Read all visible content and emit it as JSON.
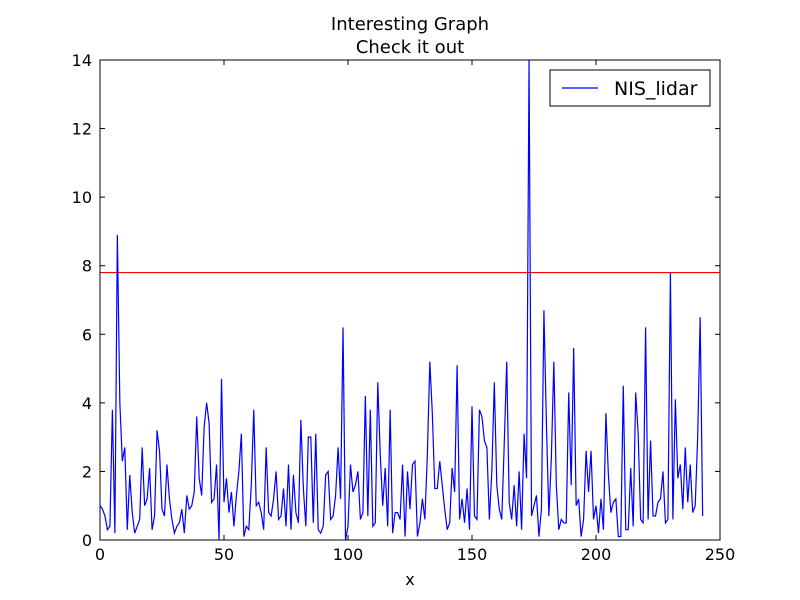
{
  "chart_data": {
    "type": "line",
    "title": "Interesting Graph",
    "subtitle": "Check it out",
    "xlabel": "x",
    "ylabel": "",
    "xlim": [
      0,
      250
    ],
    "ylim": [
      0,
      14
    ],
    "xticks": [
      0,
      50,
      100,
      150,
      200,
      250
    ],
    "yticks": [
      0,
      2,
      4,
      6,
      8,
      10,
      12,
      14
    ],
    "grid": false,
    "legend_position": "top-right",
    "series": [
      {
        "name": "NIS_lidar",
        "color": "#0000ff",
        "x_start": 0,
        "x_step": 1,
        "values": [
          1.0,
          0.9,
          0.7,
          0.3,
          0.4,
          3.8,
          0.2,
          8.9,
          4.0,
          2.3,
          2.7,
          0.3,
          1.9,
          0.8,
          0.2,
          0.4,
          0.6,
          2.7,
          1.0,
          1.2,
          2.1,
          0.3,
          0.7,
          3.2,
          2.6,
          0.9,
          0.7,
          2.2,
          1.2,
          0.6,
          0.2,
          0.4,
          0.5,
          0.9,
          0.2,
          1.3,
          0.9,
          1.0,
          1.4,
          3.6,
          1.8,
          1.3,
          3.3,
          4.0,
          3.4,
          1.1,
          1.2,
          2.2,
          0.0,
          4.7,
          1.1,
          1.8,
          0.8,
          1.4,
          0.4,
          1.3,
          2.0,
          3.1,
          0.1,
          0.4,
          0.3,
          1.6,
          3.8,
          1.0,
          1.1,
          0.8,
          0.3,
          2.7,
          0.8,
          0.7,
          1.2,
          2.0,
          0.6,
          0.7,
          1.5,
          0.4,
          2.2,
          0.3,
          1.9,
          0.8,
          0.5,
          3.5,
          1.5,
          0.4,
          3.0,
          3.0,
          0.5,
          3.1,
          0.3,
          0.2,
          0.4,
          1.9,
          2.0,
          0.6,
          0.7,
          1.3,
          2.7,
          1.2,
          6.2,
          0.0,
          0.4,
          2.2,
          1.4,
          1.6,
          2.0,
          0.6,
          0.8,
          4.2,
          0.7,
          3.8,
          0.4,
          0.5,
          4.6,
          2.5,
          1.0,
          2.1,
          0.4,
          3.8,
          0.2,
          0.8,
          0.8,
          0.6,
          2.2,
          0.1,
          2.0,
          0.9,
          2.2,
          2.3,
          0.1,
          0.5,
          1.2,
          0.6,
          2.5,
          5.2,
          3.7,
          1.5,
          1.5,
          2.3,
          1.6,
          0.9,
          0.3,
          0.5,
          2.1,
          1.4,
          5.1,
          0.6,
          1.2,
          0.5,
          1.5,
          0.3,
          3.9,
          0.7,
          0.6,
          3.8,
          3.6,
          2.9,
          2.7,
          0.6,
          2.0,
          4.6,
          1.6,
          0.9,
          0.6,
          2.8,
          5.2,
          1.1,
          0.6,
          1.6,
          0.4,
          2.0,
          0.3,
          3.1,
          1.8,
          14.0,
          0.7,
          1.0,
          1.3,
          0.1,
          0.9,
          6.7,
          3.4,
          0.7,
          2.4,
          5.2,
          1.6,
          0.3,
          0.6,
          0.5,
          0.5,
          4.3,
          1.6,
          5.6,
          1.0,
          1.2,
          0.1,
          0.6,
          2.6,
          1.4,
          2.6,
          0.6,
          1.0,
          0.2,
          1.2,
          0.3,
          3.7,
          1.9,
          0.8,
          1.1,
          1.2,
          0.1,
          0.1,
          4.5,
          0.3,
          0.3,
          2.1,
          0.4,
          4.3,
          3.1,
          0.6,
          0.5,
          6.2,
          0.6,
          2.9,
          0.7,
          0.7,
          1.1,
          1.2,
          2.0,
          0.5,
          0.6,
          7.8,
          0.6,
          4.1,
          1.8,
          2.2,
          0.9,
          2.7,
          1.1,
          2.2,
          0.8,
          1.0,
          3.0,
          6.5,
          0.7
        ]
      }
    ],
    "reference_lines": [
      {
        "orientation": "horizontal",
        "y": 7.8,
        "color": "#ff0000"
      }
    ]
  }
}
